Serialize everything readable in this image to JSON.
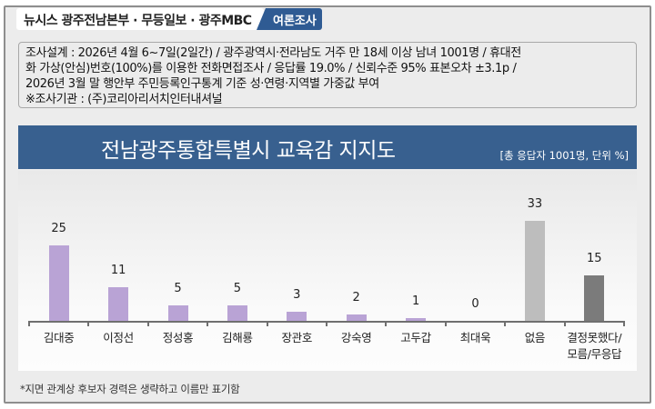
{
  "header": {
    "sources": "뉴시스  광주전남본부 · 무등일보 · 광주MBC",
    "badge": "여론조사",
    "badge_color": "#2f5b93"
  },
  "survey_info": {
    "lines": [
      "조사설계 : 2026년 4월 6~7일(2일간) / 광주광역시·전라남도 거주 만 18세 이상 남녀 1001명 / 휴대전",
      "화 가상(안심)번호(100%)를 이용한 전화면접조사 / 응답률 19.0% / 신뢰수준 95% 표본오차 ±3.1p /",
      "2026년 3월 말 행안부 주민등록인구통계 기준 성·연령·지역별 가중값 부여",
      "※조사기관 : (주)코리아리서치인터내셔널"
    ]
  },
  "chart": {
    "title": "전남광주통합특별시 교육감 지지도",
    "unit_note": "[총 응답자 1001명, 단위 %]",
    "title_bar_color": "#38608f"
  },
  "footnote": "*지면 관계상 후보자 경력은 생략하고 이름만 표기함",
  "chart_data": {
    "type": "bar",
    "title": "전남광주통합특별시 교육감 지지도",
    "subtitle": "[총 응답자 1001명, 단위 %]",
    "categories": [
      "김대중",
      "이정선",
      "정성홍",
      "김해룡",
      "장관호",
      "강숙영",
      "고두갑",
      "최대욱",
      "없음",
      "결정못했다/모름/무응답"
    ],
    "category_lines": [
      [
        "김대중"
      ],
      [
        "이정선"
      ],
      [
        "정성홍"
      ],
      [
        "김해룡"
      ],
      [
        "장관호"
      ],
      [
        "강숙영"
      ],
      [
        "고두갑"
      ],
      [
        "최대욱"
      ],
      [
        "없음"
      ],
      [
        "결정못했다/",
        "모름/무응답"
      ]
    ],
    "values": [
      25,
      11,
      5,
      5,
      3,
      2,
      1,
      0,
      33,
      15
    ],
    "colors": [
      "#b9a3d5",
      "#b9a3d5",
      "#b9a3d5",
      "#b9a3d5",
      "#b9a3d5",
      "#b9a3d5",
      "#b9a3d5",
      "#b9a3d5",
      "#bdbdbd",
      "#7b7b7b"
    ],
    "xlabel": "",
    "ylabel": "",
    "ylim": [
      0,
      35
    ],
    "grid": false,
    "legend": "none",
    "data_labels": true
  }
}
